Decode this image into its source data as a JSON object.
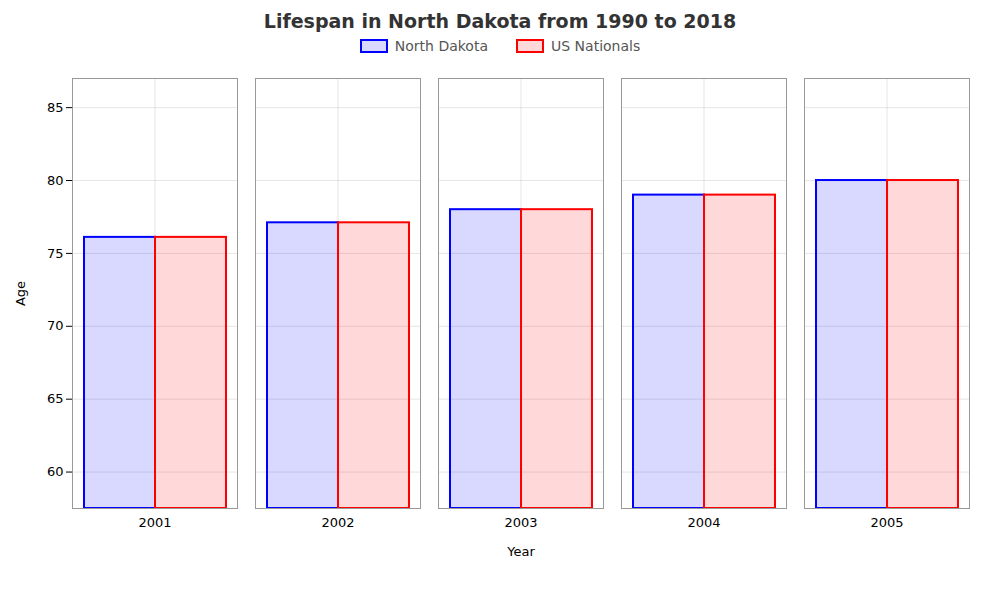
{
  "chart_data": {
    "type": "bar",
    "title": "Lifespan in North Dakota from 1990 to 2018",
    "xlabel": "Year",
    "ylabel": "Age",
    "categories": [
      "2001",
      "2002",
      "2003",
      "2004",
      "2005"
    ],
    "series": [
      {
        "name": "North Dakota",
        "color": "#0000ff",
        "values": [
          76.1,
          77.1,
          78.0,
          79.0,
          80.0
        ]
      },
      {
        "name": "US Nationals",
        "color": "#ff0000",
        "values": [
          76.1,
          77.1,
          78.0,
          79.0,
          80.0
        ]
      }
    ],
    "ylim": [
      57.5,
      87
    ],
    "yticks": [
      60,
      65,
      70,
      75,
      80,
      85
    ],
    "grid": true,
    "legend": "top"
  }
}
